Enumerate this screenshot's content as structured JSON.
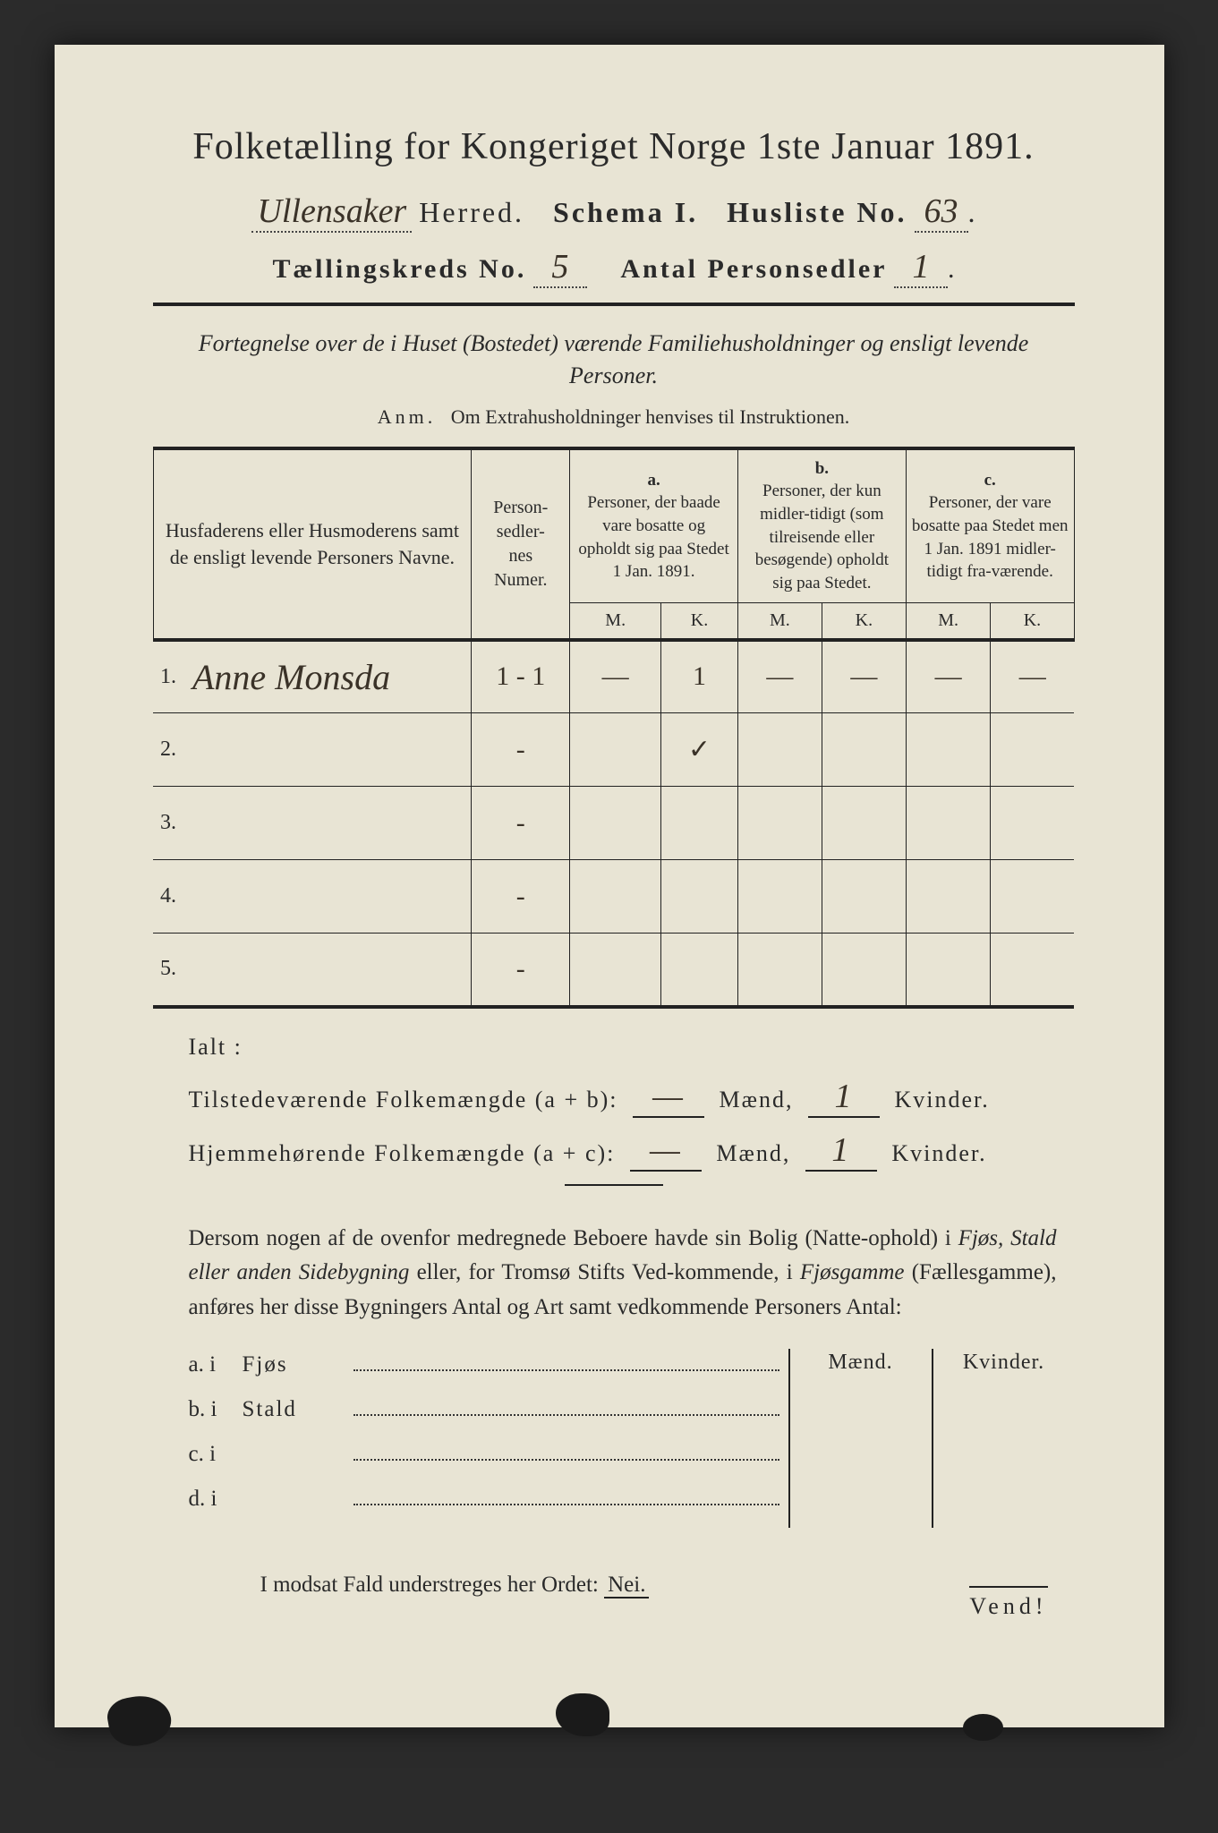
{
  "header": {
    "title": "Folketælling for Kongeriget Norge 1ste Januar 1891.",
    "herred_hw": "Ullensaker",
    "herred_label": "Herred.",
    "schema": "Schema I.",
    "husliste_label": "Husliste No.",
    "husliste_no_hw": "63",
    "kreds_label": "Tællingskreds No.",
    "kreds_no_hw": "5",
    "antal_label": "Antal Personsedler",
    "antal_hw": "1"
  },
  "subtitle": "Fortegnelse over de i Huset (Bostedet) værende Familiehusholdninger og ensligt levende Personer.",
  "anm_label": "Anm.",
  "anm_text": "Om Extrahusholdninger henvises til Instruktionen.",
  "table": {
    "col_names": "Husfaderens eller Husmoderens samt de ensligt levende Personers Navne.",
    "col_numer": "Person-\nsedler-\nnes\nNumer.",
    "col_a_top": "a.",
    "col_a": "Personer, der baade vare bosatte og opholdt sig paa Stedet 1 Jan. 1891.",
    "col_b_top": "b.",
    "col_b": "Personer, der kun midler-tidigt (som tilreisende eller besøgende) opholdt sig paa Stedet.",
    "col_c_top": "c.",
    "col_c": "Personer, der vare bosatte paa Stedet men 1 Jan. 1891 midler-tidigt fra-værende.",
    "m": "M.",
    "k": "K.",
    "rows": [
      {
        "n": "1.",
        "name_hw": "Anne Monsda",
        "num_hw": "1 - 1",
        "a_m": "—",
        "a_k": "1",
        "b_m": "—",
        "b_k": "—",
        "c_m": "—",
        "c_k": "—"
      },
      {
        "n": "2.",
        "name_hw": "",
        "num_hw": "-",
        "a_m": "",
        "a_k": "✓",
        "b_m": "",
        "b_k": "",
        "c_m": "",
        "c_k": ""
      },
      {
        "n": "3.",
        "name_hw": "",
        "num_hw": "-",
        "a_m": "",
        "a_k": "",
        "b_m": "",
        "b_k": "",
        "c_m": "",
        "c_k": ""
      },
      {
        "n": "4.",
        "name_hw": "",
        "num_hw": "-",
        "a_m": "",
        "a_k": "",
        "b_m": "",
        "b_k": "",
        "c_m": "",
        "c_k": ""
      },
      {
        "n": "5.",
        "name_hw": "",
        "num_hw": "-",
        "a_m": "",
        "a_k": "",
        "b_m": "",
        "b_k": "",
        "c_m": "",
        "c_k": ""
      }
    ]
  },
  "totals": {
    "ialt": "Ialt :",
    "line1_label": "Tilstedeværende Folkemængde (a + b):",
    "line2_label": "Hjemmehørende Folkemængde (a + c):",
    "maend": "Mænd,",
    "kvinder": "Kvinder.",
    "l1_m_hw": "—",
    "l1_k_hw": "1",
    "l2_m_hw": "—",
    "l2_k_hw": "1"
  },
  "para": "Dersom nogen af de ovenfor medregnede Beboere havde sin Bolig (Natte-ophold) i Fjøs, Stald eller anden Sidebygning eller, for Tromsø Stifts Ved-kommende, i Fjøsgamme (Fællesgamme), anføres her disse Bygningers Antal og Art samt vedkommende Personers Antal:",
  "byg": {
    "maend": "Mænd.",
    "kvinder": "Kvinder.",
    "rows": [
      {
        "a": "a.  i",
        "b": "Fjøs"
      },
      {
        "a": "b.  i",
        "b": "Stald"
      },
      {
        "a": "c.  i",
        "b": ""
      },
      {
        "a": "d.  i",
        "b": ""
      }
    ]
  },
  "modsat_pre": "I modsat Fald understreges her Ordet:",
  "modsat_nei": "Nei.",
  "vend": "Vend!",
  "colors": {
    "paper": "#e8e4d4",
    "ink": "#2a2a2a",
    "handwriting": "#3a3228",
    "background": "#2b2b2b"
  }
}
